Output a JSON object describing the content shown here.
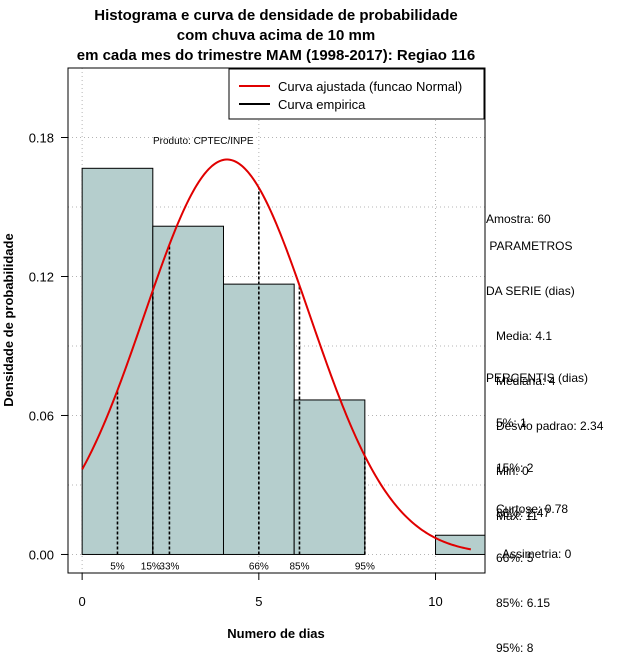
{
  "chart_data": {
    "type": "bar",
    "title": [
      "Histograma e curva de densidade de probabilidade",
      "com chuva acima de 10 mm",
      "em cada mes do trimestre MAM (1998-2017): Regiao 116"
    ],
    "xlabel": "Numero de dias",
    "ylabel": "Densidade de probabilidade",
    "xlim": [
      -0.4,
      11.4
    ],
    "ylim": [
      -0.008,
      0.21
    ],
    "x_ticks": [
      0,
      5,
      10
    ],
    "y_ticks": [
      0.0,
      0.06,
      0.12,
      0.18
    ],
    "y_tick_labels": [
      "0.00",
      "0.06",
      "0.12",
      "0.18"
    ],
    "grid": true,
    "source_label": "Produto: CPTEC/INPE",
    "legend": {
      "placement": "top-right",
      "entries": [
        {
          "label": "Curva ajustada (funcao Normal)",
          "color": "#e00000"
        },
        {
          "label": "Curva empirica",
          "color": "#000000"
        }
      ]
    },
    "bins": [
      {
        "start": 0,
        "end": 2,
        "value": 0.1667
      },
      {
        "start": 2,
        "end": 4,
        "value": 0.1417
      },
      {
        "start": 4,
        "end": 6,
        "value": 0.1167
      },
      {
        "start": 6,
        "end": 8,
        "value": 0.0667
      },
      {
        "start": 8,
        "end": 10,
        "value": 0.0
      },
      {
        "start": 10,
        "end": 12,
        "value": 0.0083
      }
    ],
    "normal_curve": {
      "mean": 4.1,
      "sd": 2.34,
      "x_from": 0,
      "x_to": 11
    },
    "percentile_lines": [
      {
        "label": "5%",
        "x": 1
      },
      {
        "label": "15%",
        "x": 2
      },
      {
        "label": "33%",
        "x": 2.47
      },
      {
        "label": "66%",
        "x": 5
      },
      {
        "label": "85%",
        "x": 6.15
      },
      {
        "label": "95%",
        "x": 8
      }
    ],
    "colors": {
      "bar_fill": "#b5cecd",
      "curve": "#e00000",
      "grid": "#b4b4b4"
    }
  },
  "stats": {
    "amostra": "Amostra: 60",
    "parametros_title_1": " PARAMETROS",
    "parametros_title_2": "DA SERIE (dias)",
    "media": "   Media: 4.1",
    "mediana": "   Mediana: 4",
    "desvio": "   Desvio padrao: 2.34",
    "min": "   Min: 0",
    "max": "   Max: 11",
    "percentis_title": "PERCENTIS (dias)",
    "p5": "   5%: 1",
    "p15": "   15%: 2",
    "p33": "   33%: 2.47",
    "p66": "   66%: 5",
    "p85": "   85%: 6.15",
    "p95": "   95%: 8",
    "curtose": "   Curtose: 0.78",
    "assimetria": "     Assimetria: 0"
  }
}
